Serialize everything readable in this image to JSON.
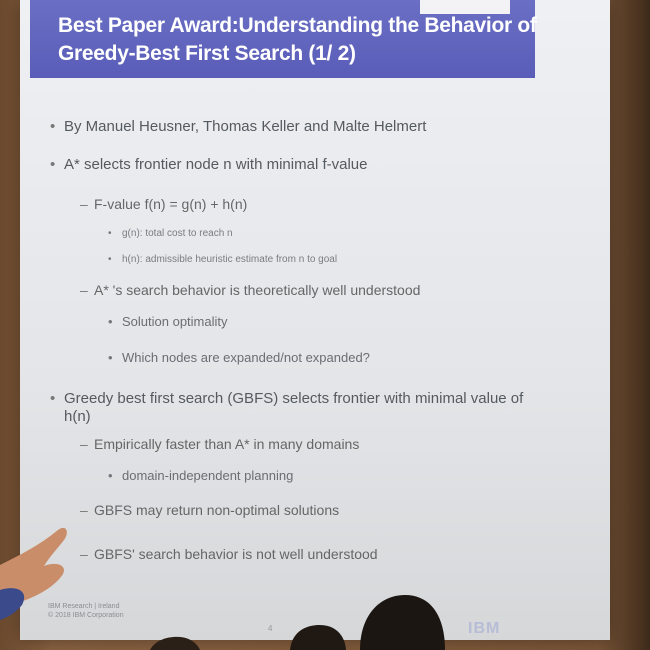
{
  "slide": {
    "title_line1": "Best Paper Award:Understanding the Behavior of",
    "title_line2": "Greedy-Best First Search (1/ 2)",
    "bullets": [
      {
        "level": 1,
        "text": "By Manuel Heusner, Thomas Keller and Malte Helmert"
      },
      {
        "level": 1,
        "text": "A* selects frontier node n with minimal f-value"
      },
      {
        "level": 2,
        "text": "F-value f(n) = g(n) + h(n)"
      },
      {
        "level": 3,
        "text": "g(n): total cost to reach n"
      },
      {
        "level": 3,
        "text": "h(n): admissible heuristic estimate from n to goal"
      },
      {
        "level": 2,
        "text": "A* 's search behavior is theoretically well understood"
      },
      {
        "level": 3,
        "text": "Solution optimality"
      },
      {
        "level": 3,
        "text": "Which nodes are expanded/not expanded?"
      },
      {
        "level": 1,
        "text": "Greedy best first search (GBFS) selects frontier with minimal value of"
      },
      {
        "level": 1,
        "text": "h(n)",
        "continuation": true
      },
      {
        "level": 2,
        "text": "Empirically faster than A* in many domains"
      },
      {
        "level": 3,
        "text": "domain-independent planning"
      },
      {
        "level": 2,
        "text": "GBFS may return non-optimal solutions"
      },
      {
        "level": 2,
        "text": "GBFS' search behavior is not well understood"
      }
    ],
    "footer_line1": "IBM Research | Ireland",
    "footer_line2": "© 2018 IBM Corporation",
    "page_number": "4",
    "logo_text": "IBM"
  }
}
